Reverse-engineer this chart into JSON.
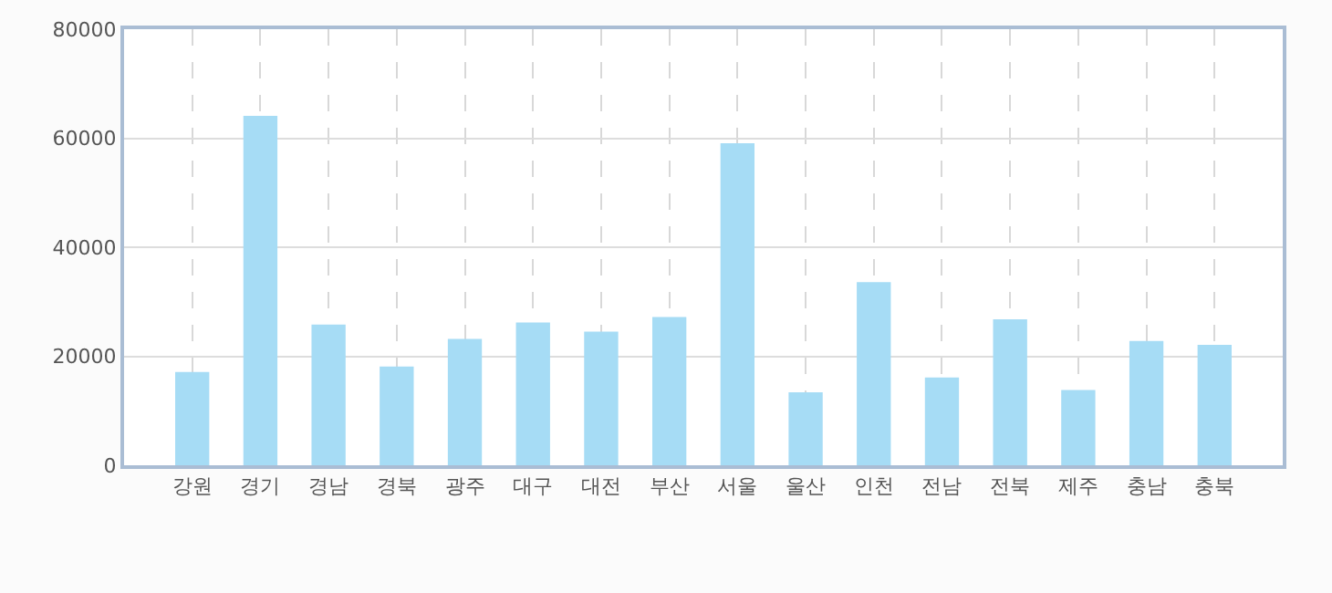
{
  "chart_data": {
    "type": "bar",
    "categories": [
      "강원",
      "경기",
      "경남",
      "경북",
      "광주",
      "대구",
      "대전",
      "부산",
      "서울",
      "울산",
      "인천",
      "전남",
      "전북",
      "제주",
      "충남",
      "충북"
    ],
    "series": [
      {
        "color": "#a6dcf5",
        "values": [
          17100,
          64100,
          25800,
          18100,
          23200,
          26200,
          24500,
          27200,
          59100,
          13400,
          33600,
          16100,
          26800,
          13800,
          22800,
          22100
        ]
      }
    ],
    "ylim": [
      0,
      80000
    ],
    "yticks": [
      0,
      20000,
      40000,
      60000,
      80000
    ],
    "grid": true
  }
}
